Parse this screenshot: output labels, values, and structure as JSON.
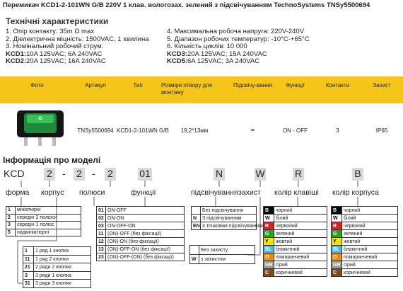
{
  "header": {
    "title": "Перемикач KCD1-2-101WN G/B 220V 1 клав. вологозах. зелений з підсвічуванням TechnoSystems TNSy5500694"
  },
  "specs": {
    "heading": "Технічні характеристики",
    "left": [
      "1. Опір контакту: 35m Ω  max",
      "2. Діелектрична міцність:  1500VAC, 1 хвилина",
      "3. Номінальний робочий струм:"
    ],
    "left_current": [
      {
        "label": "KCD1:",
        "text": " 10A 125VAC; 6A 240VAC"
      },
      {
        "label": "KCD2:",
        "text": " 20A 125VAC; 16A 240VAC"
      }
    ],
    "right": [
      "4. Максимальна робоча напруга: 220V-240V",
      "5. Діапазон робочих температур: -10°C-+65°C",
      "6. Кількість циклів: 10 000"
    ],
    "right_current": [
      {
        "label": "KCD3:",
        "text": " 20A 125VAC; 15A 240VAC"
      },
      {
        "label": "KCD5:",
        "text": " 6A 125VAC; 3A 240VAC"
      }
    ]
  },
  "table": {
    "headers": [
      "Фото",
      "Артикул",
      "Тип",
      "Розміри отвору для монтажу",
      "Підсвічу-вання",
      "Функції",
      "Контакти",
      "Захист"
    ],
    "row": [
      "TNSy5500694",
      "KCD1-2-101WN G/B",
      "19,2*13мм",
      "-",
      "ON - OFF",
      "3",
      "IP65"
    ]
  },
  "model": {
    "heading": "Інформація про моделі",
    "code": [
      "KCD",
      "2",
      "-",
      "2",
      "-",
      "2",
      "01",
      "N",
      "W",
      "R",
      "B"
    ],
    "labels": [
      "форма",
      "корпус",
      "полюси",
      "функції",
      "підсвічування",
      "захист",
      "колір клавіші",
      "колір корпуса"
    ],
    "form": [
      [
        "1",
        "мініатюрні"
      ],
      [
        "2",
        "середні 2 полюси"
      ],
      [
        "3",
        "середні 1 полюс"
      ],
      [
        "5",
        "надмініатюрні"
      ]
    ],
    "body": [
      [
        "1",
        "1 ряд 1 кнопка"
      ],
      [
        "11",
        "1 ряд 2 кнопки"
      ],
      [
        "21",
        "2 ряди 2 кнопки"
      ],
      [
        "3",
        "3 ряди 1 кнопка"
      ],
      [
        "31",
        "3 ряди 3 кнопки"
      ]
    ],
    "functions": [
      [
        "01",
        "ON-OFF"
      ],
      [
        "02",
        "ON-ON"
      ],
      [
        "03",
        "ON-OFF-ON"
      ],
      [
        "11",
        "(ON)-OFF (без фіксації)"
      ],
      [
        "12",
        "(ON)-ON (без фіксації)"
      ],
      [
        "13",
        "(ON)-OFF-ON (без фіксації)"
      ],
      [
        "23",
        "(ON)-OFF-(ON) (без фіксації)"
      ]
    ],
    "lighting": [
      [
        null,
        "Без підсвічування"
      ],
      [
        "N",
        "З підсвічуванням"
      ],
      [
        "EN",
        "3 точковим підсвічуванням"
      ]
    ],
    "protection": [
      [
        null,
        "Без захисту"
      ],
      [
        "W",
        "з захистом"
      ]
    ],
    "key_color": [
      [
        "B",
        "чорний"
      ],
      [
        "W",
        "білий"
      ],
      [
        "R",
        "червоний"
      ],
      [
        "G",
        "зелений"
      ],
      [
        "Y",
        "жовтий"
      ],
      [
        "BL",
        "блакитний"
      ],
      [
        "O",
        "помаранчевий"
      ],
      [
        "GR",
        "сірий"
      ],
      [
        "C",
        "коричневий"
      ]
    ],
    "body_color": [
      [
        "B",
        "чорний"
      ],
      [
        "W",
        "білий"
      ],
      [
        "R",
        "червоний"
      ],
      [
        "G",
        "зелений"
      ],
      [
        "Y",
        "жовтий"
      ],
      [
        "BL",
        "блакитний"
      ],
      [
        "O",
        "помаранчевий"
      ],
      [
        "GR",
        "сірий"
      ],
      [
        "C",
        "коричневий"
      ]
    ],
    "swatches": [
      "#000000",
      "#ffffff",
      "#e02020",
      "#2aa02a",
      "#f5e400",
      "#4fb8e8",
      "#f08a00",
      "#9a9a9a",
      "#7a4a20"
    ]
  }
}
